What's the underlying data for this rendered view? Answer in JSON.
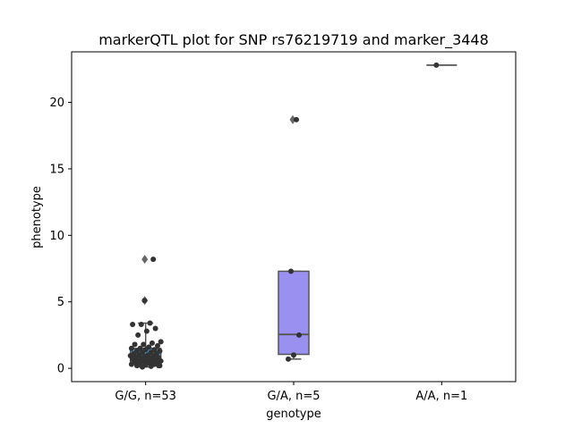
{
  "chart_data": {
    "type": "box",
    "title": "markerQTL plot for SNP rs76219719 and marker_3448",
    "xlabel": "genotype",
    "ylabel": "phenotype",
    "ylim": [
      -1.0,
      23.8
    ],
    "yticks": [
      0,
      5,
      10,
      15,
      20
    ],
    "grid": false,
    "categories": [
      "G/G, n=53",
      "G/A, n=5",
      "A/A, n=1"
    ],
    "boxes": [
      {
        "category": "G/G, n=53",
        "color": "#3fa0e0",
        "whisker_low": 0.1,
        "q1": 0.4,
        "median": 0.9,
        "q3": 1.5,
        "whisker_high": 3.4,
        "outliers": [
          5.1,
          8.2
        ]
      },
      {
        "category": "G/A, n=5",
        "color": "#9a90f0",
        "whisker_low": 0.7,
        "q1": 1.05,
        "median": 2.55,
        "q3": 7.3,
        "whisker_high": 7.3,
        "outliers": [
          18.7
        ]
      },
      {
        "category": "A/A, n=1",
        "color": "#8c80e8",
        "whisker_low": 22.8,
        "q1": 22.8,
        "median": 22.8,
        "q3": 22.8,
        "whisker_high": 22.8,
        "outliers": []
      }
    ],
    "points": [
      {
        "category": "G/G, n=53",
        "values": [
          0.1,
          0.15,
          0.2,
          0.2,
          0.25,
          0.3,
          0.3,
          0.35,
          0.4,
          0.4,
          0.45,
          0.5,
          0.5,
          0.55,
          0.6,
          0.6,
          0.65,
          0.7,
          0.7,
          0.75,
          0.8,
          0.85,
          0.9,
          0.9,
          0.95,
          1.0,
          1.0,
          1.1,
          1.1,
          1.2,
          1.2,
          1.3,
          1.3,
          1.4,
          1.4,
          1.5,
          1.5,
          1.6,
          1.7,
          1.8,
          1.8,
          1.9,
          2.0,
          2.5,
          2.8,
          3.0,
          3.3,
          3.3,
          3.4,
          0.2,
          0.6,
          5.1,
          8.2
        ]
      },
      {
        "category": "G/A, n=5",
        "values": [
          0.7,
          1.0,
          2.5,
          7.3,
          18.7
        ]
      },
      {
        "category": "A/A, n=1",
        "values": [
          22.8
        ]
      }
    ]
  }
}
